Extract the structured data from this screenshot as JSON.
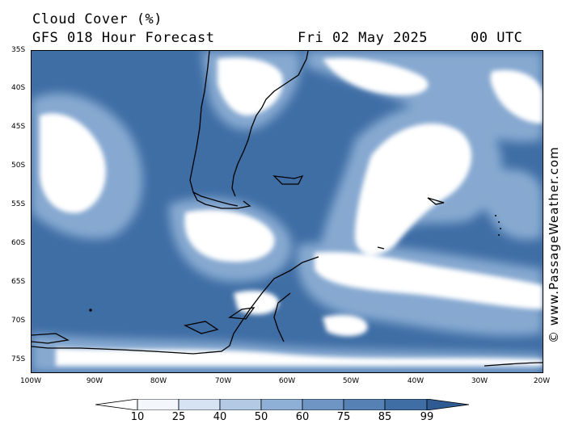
{
  "title": {
    "line1": "Cloud Cover (%)",
    "model": "GFS 018 Hour Forecast",
    "date": "Fri 02 May 2025",
    "time": "00 UTC"
  },
  "map": {
    "lat_labels": [
      "35S",
      "40S",
      "45S",
      "50S",
      "55S",
      "60S",
      "65S",
      "70S",
      "75S"
    ],
    "lon_labels": [
      "100W",
      "90W",
      "80W",
      "70W",
      "60W",
      "50W",
      "40W",
      "30W",
      "20W"
    ],
    "colors": {
      "land_outline": "#000000",
      "clear": "#3f6ea5",
      "cloud_high": "#ffffff"
    }
  },
  "watermark": "© www.PassageWeather.com",
  "legend": {
    "values": [
      "10",
      "25",
      "40",
      "50",
      "60",
      "75",
      "85",
      "99"
    ],
    "colors": [
      "#ffffff",
      "#f3f7fc",
      "#d6e3f2",
      "#b3c9e4",
      "#8fb0d6",
      "#6e95c4",
      "#5581b5",
      "#3f6ea5",
      "#2f5b93"
    ]
  }
}
